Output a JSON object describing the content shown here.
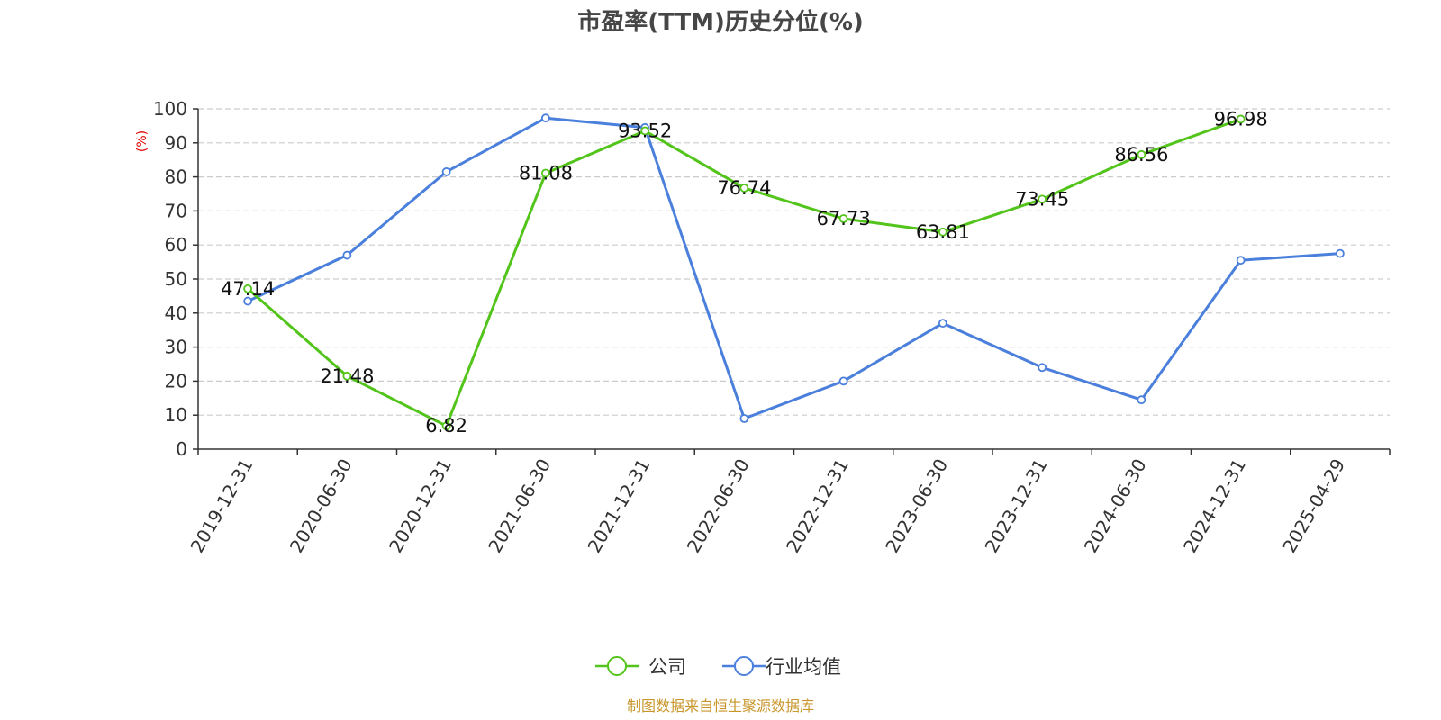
{
  "chart_data": {
    "type": "line",
    "title": "市盈率(TTM)历史分位(%)",
    "ylabel": "(%)",
    "ylim": [
      0,
      100
    ],
    "yticks": [
      0,
      10,
      20,
      30,
      40,
      50,
      60,
      70,
      80,
      90,
      100
    ],
    "grid": true,
    "legend_position": "bottom-center",
    "categories": [
      "2019-12-31",
      "2020-06-30",
      "2020-12-31",
      "2021-06-30",
      "2021-12-31",
      "2022-06-30",
      "2022-12-31",
      "2023-06-30",
      "2023-12-31",
      "2024-06-30",
      "2024-12-31",
      "2025-04-29"
    ],
    "series": [
      {
        "name": "公司",
        "color": "#52c41a",
        "values": [
          47.14,
          21.48,
          6.82,
          81.08,
          93.52,
          76.74,
          67.73,
          63.81,
          73.45,
          86.56,
          96.98,
          null
        ],
        "labels": [
          "47.14",
          "21.48",
          "6.82",
          "81.08",
          "93.52",
          "76.74",
          "67.73",
          "63.81",
          "73.45",
          "86.56",
          "96.98",
          ""
        ]
      },
      {
        "name": "行业均值",
        "color": "#4a7fdc",
        "values": [
          43.5,
          57.0,
          81.5,
          97.3,
          94.5,
          9.0,
          20.0,
          37.0,
          24.0,
          14.5,
          55.5,
          57.5
        ]
      }
    ]
  },
  "footer": {
    "source": "制图数据来自恒生聚源数据库"
  }
}
